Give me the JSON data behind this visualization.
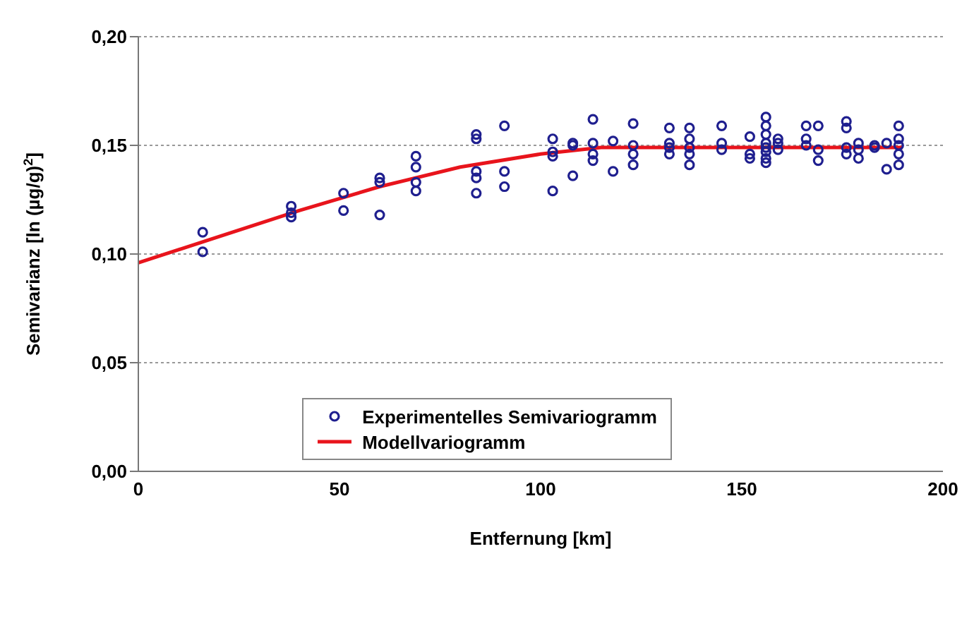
{
  "chart_data": {
    "type": "scatter",
    "xlabel": "Entfernung [km]",
    "ylabel": "Semivarianz [ln (µg/g)$^{2}$]",
    "xlim": [
      0,
      200
    ],
    "xticks": [
      0,
      50,
      100,
      150,
      200
    ],
    "ylim": [
      0,
      0.2
    ],
    "yticks": [
      {
        "value": 0,
        "label": "0,00"
      },
      {
        "value": 0.05,
        "label": "0,05"
      },
      {
        "value": 0.1,
        "label": "0,10"
      },
      {
        "value": 0.15,
        "label": "0,15"
      },
      {
        "value": 0.2,
        "label": "0,20"
      }
    ],
    "grid": "y",
    "legend": "bottom",
    "series": [
      {
        "name": "Experimentelles Semivariogramm",
        "color": "#1f1f8f",
        "marker": "circle",
        "x": [
          16,
          16,
          38,
          38,
          38,
          51,
          51,
          60,
          60,
          60,
          69,
          69,
          69,
          69,
          84,
          84,
          84,
          84,
          84,
          91,
          91,
          91,
          103,
          103,
          103,
          103,
          108,
          108,
          108,
          113,
          113,
          113,
          113,
          118,
          118,
          123,
          123,
          123,
          123,
          132,
          132,
          132,
          132,
          137,
          137,
          137,
          137,
          137,
          145,
          145,
          145,
          152,
          152,
          152,
          156,
          156,
          156,
          156,
          156,
          156,
          156,
          156,
          159,
          159,
          159,
          166,
          166,
          166,
          169,
          169,
          169,
          176,
          176,
          176,
          176,
          179,
          179,
          179,
          183,
          183,
          186,
          186,
          189,
          189,
          189,
          189,
          189
        ],
        "values": [
          0.11,
          0.101,
          0.122,
          0.119,
          0.117,
          0.128,
          0.12,
          0.135,
          0.133,
          0.118,
          0.145,
          0.14,
          0.133,
          0.129,
          0.155,
          0.153,
          0.138,
          0.135,
          0.128,
          0.159,
          0.138,
          0.131,
          0.153,
          0.147,
          0.145,
          0.129,
          0.151,
          0.15,
          0.136,
          0.162,
          0.151,
          0.146,
          0.143,
          0.152,
          0.138,
          0.16,
          0.15,
          0.146,
          0.141,
          0.158,
          0.151,
          0.149,
          0.146,
          0.158,
          0.153,
          0.149,
          0.146,
          0.141,
          0.159,
          0.151,
          0.148,
          0.154,
          0.146,
          0.144,
          0.163,
          0.159,
          0.155,
          0.151,
          0.149,
          0.147,
          0.144,
          0.142,
          0.153,
          0.151,
          0.148,
          0.159,
          0.153,
          0.15,
          0.159,
          0.148,
          0.143,
          0.161,
          0.158,
          0.149,
          0.146,
          0.151,
          0.148,
          0.144,
          0.15,
          0.149,
          0.151,
          0.139,
          0.159,
          0.153,
          0.15,
          0.146,
          0.141
        ]
      },
      {
        "name": "Modellvariogramm",
        "type": "line",
        "color": "#e8141c",
        "marker": "none",
        "line_style": "solid",
        "x": [
          0,
          20,
          40,
          60,
          80,
          100,
          115,
          190
        ],
        "values": [
          0.096,
          0.108,
          0.12,
          0.131,
          0.14,
          0.146,
          0.149,
          0.149
        ]
      }
    ]
  }
}
